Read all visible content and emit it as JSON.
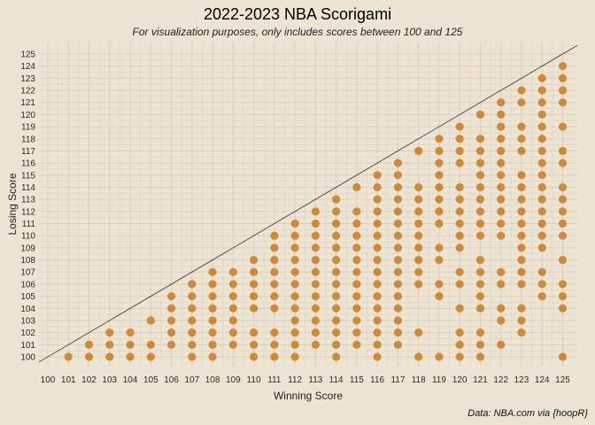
{
  "colors": {
    "background": "#ede4d4",
    "grid": "#dccdb8",
    "point": "#cd8a3a",
    "diagonal": "#1a1a1a"
  },
  "header": {
    "title": "2022-2023 NBA Scorigami",
    "subtitle": "For visualization purposes, only includes scores between 100 and 125"
  },
  "caption": "Data: NBA.com via {hoopR}",
  "chart_data": {
    "type": "scatter",
    "title": "2022-2023 NBA Scorigami",
    "subtitle": "For visualization purposes, only includes scores between 100 and 125",
    "xlabel": "Winning Score",
    "ylabel": "Losing Score",
    "xlim": [
      100,
      125
    ],
    "ylim": [
      100,
      125
    ],
    "x_ticks": [
      100,
      101,
      102,
      103,
      104,
      105,
      106,
      107,
      108,
      109,
      110,
      111,
      112,
      113,
      114,
      115,
      116,
      117,
      118,
      119,
      120,
      121,
      122,
      123,
      124,
      125
    ],
    "y_ticks": [
      100,
      101,
      102,
      103,
      104,
      105,
      106,
      107,
      108,
      109,
      110,
      111,
      112,
      113,
      114,
      115,
      116,
      117,
      118,
      119,
      120,
      121,
      122,
      123,
      124,
      125
    ],
    "grid": true,
    "reference_line": "y = x",
    "points_by_winning_score": {
      "101": [
        100
      ],
      "102": [
        100,
        101
      ],
      "103": [
        100,
        101,
        102
      ],
      "104": [
        100,
        101,
        102
      ],
      "105": [
        100,
        101,
        103
      ],
      "106": [
        101,
        102,
        103,
        104,
        105
      ],
      "107": [
        100,
        101,
        102,
        103,
        104,
        105,
        106
      ],
      "108": [
        100,
        101,
        102,
        103,
        104,
        105,
        106,
        107
      ],
      "109": [
        101,
        102,
        103,
        104,
        105,
        106,
        107
      ],
      "110": [
        100,
        101,
        102,
        104,
        105,
        106,
        107,
        108
      ],
      "111": [
        100,
        101,
        102,
        104,
        105,
        106,
        107,
        108,
        109,
        110
      ],
      "112": [
        100,
        101,
        102,
        103,
        104,
        105,
        106,
        107,
        108,
        109,
        110,
        111
      ],
      "113": [
        101,
        102,
        103,
        104,
        105,
        106,
        107,
        108,
        109,
        110,
        111,
        112
      ],
      "114": [
        100,
        101,
        102,
        103,
        104,
        105,
        106,
        107,
        108,
        109,
        110,
        111,
        112,
        113
      ],
      "115": [
        101,
        102,
        103,
        104,
        105,
        106,
        107,
        108,
        109,
        110,
        111,
        112,
        114
      ],
      "116": [
        100,
        101,
        102,
        103,
        104,
        105,
        106,
        107,
        108,
        109,
        110,
        111,
        112,
        113,
        114,
        115
      ],
      "117": [
        101,
        102,
        103,
        104,
        105,
        106,
        107,
        108,
        109,
        110,
        111,
        112,
        113,
        114,
        115,
        116
      ],
      "118": [
        100,
        102,
        106,
        107,
        108,
        109,
        110,
        111,
        112,
        113,
        114,
        117
      ],
      "119": [
        100,
        105,
        106,
        108,
        109,
        111,
        112,
        113,
        114,
        115,
        116,
        117,
        118
      ],
      "120": [
        100,
        101,
        102,
        104,
        106,
        107,
        109,
        110,
        111,
        112,
        113,
        114,
        116,
        117,
        118,
        119
      ],
      "121": [
        100,
        101,
        102,
        104,
        105,
        106,
        107,
        108,
        110,
        111,
        112,
        113,
        114,
        115,
        116,
        117,
        118,
        120
      ],
      "122": [
        101,
        103,
        104,
        106,
        107,
        110,
        111,
        112,
        113,
        114,
        115,
        116,
        117,
        118,
        119,
        120,
        121
      ],
      "123": [
        102,
        103,
        104,
        106,
        107,
        108,
        109,
        110,
        111,
        112,
        113,
        114,
        115,
        117,
        118,
        119,
        121,
        122
      ],
      "124": [
        105,
        106,
        107,
        109,
        110,
        111,
        112,
        113,
        114,
        115,
        116,
        117,
        118,
        119,
        120,
        121,
        122,
        123
      ],
      "125": [
        100,
        104,
        105,
        106,
        108,
        110,
        111,
        112,
        113,
        114,
        116,
        117,
        119,
        121,
        122,
        123,
        124
      ]
    }
  }
}
